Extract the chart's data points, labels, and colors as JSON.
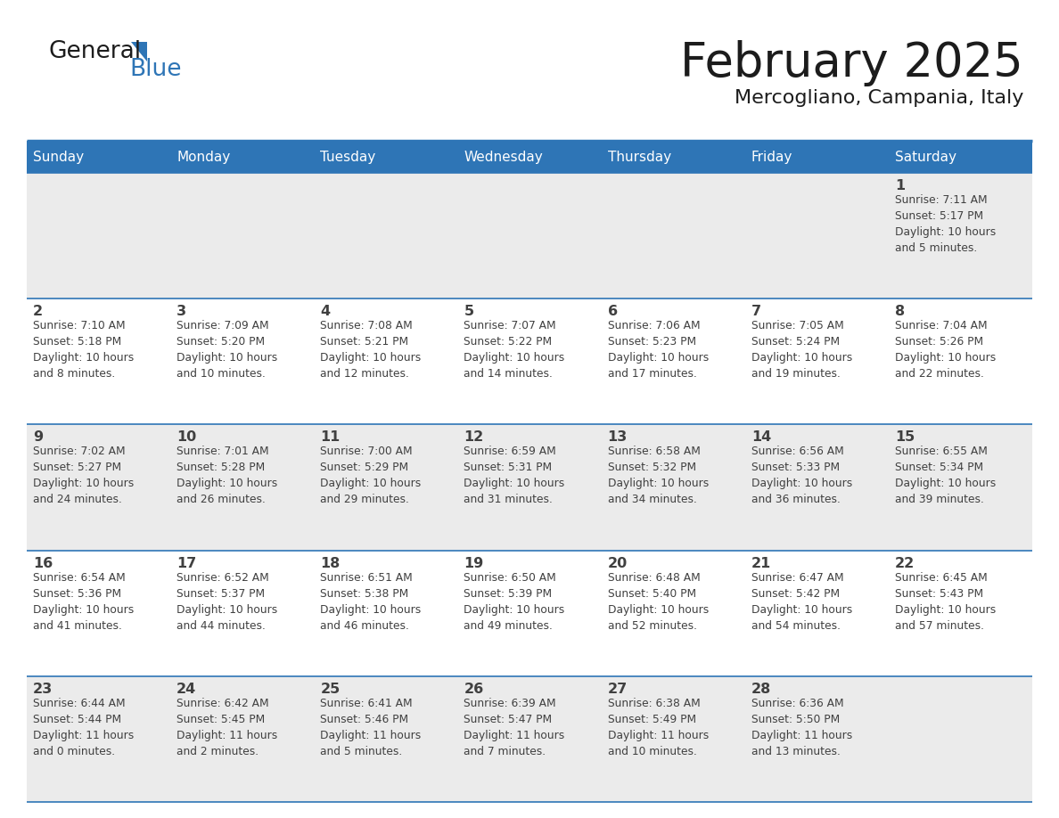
{
  "title": "February 2025",
  "subtitle": "Mercogliano, Campania, Italy",
  "header_bg_color": "#2E75B6",
  "header_text_color": "#FFFFFF",
  "row_bg_odd": "#EBEBEB",
  "row_bg_even": "#FFFFFF",
  "border_color": "#2E75B6",
  "day_number_color": "#404040",
  "text_color": "#404040",
  "weekdays": [
    "Sunday",
    "Monday",
    "Tuesday",
    "Wednesday",
    "Thursday",
    "Friday",
    "Saturday"
  ],
  "calendar": [
    [
      {
        "day": null,
        "info": ""
      },
      {
        "day": null,
        "info": ""
      },
      {
        "day": null,
        "info": ""
      },
      {
        "day": null,
        "info": ""
      },
      {
        "day": null,
        "info": ""
      },
      {
        "day": null,
        "info": ""
      },
      {
        "day": 1,
        "info": "Sunrise: 7:11 AM\nSunset: 5:17 PM\nDaylight: 10 hours\nand 5 minutes."
      }
    ],
    [
      {
        "day": 2,
        "info": "Sunrise: 7:10 AM\nSunset: 5:18 PM\nDaylight: 10 hours\nand 8 minutes."
      },
      {
        "day": 3,
        "info": "Sunrise: 7:09 AM\nSunset: 5:20 PM\nDaylight: 10 hours\nand 10 minutes."
      },
      {
        "day": 4,
        "info": "Sunrise: 7:08 AM\nSunset: 5:21 PM\nDaylight: 10 hours\nand 12 minutes."
      },
      {
        "day": 5,
        "info": "Sunrise: 7:07 AM\nSunset: 5:22 PM\nDaylight: 10 hours\nand 14 minutes."
      },
      {
        "day": 6,
        "info": "Sunrise: 7:06 AM\nSunset: 5:23 PM\nDaylight: 10 hours\nand 17 minutes."
      },
      {
        "day": 7,
        "info": "Sunrise: 7:05 AM\nSunset: 5:24 PM\nDaylight: 10 hours\nand 19 minutes."
      },
      {
        "day": 8,
        "info": "Sunrise: 7:04 AM\nSunset: 5:26 PM\nDaylight: 10 hours\nand 22 minutes."
      }
    ],
    [
      {
        "day": 9,
        "info": "Sunrise: 7:02 AM\nSunset: 5:27 PM\nDaylight: 10 hours\nand 24 minutes."
      },
      {
        "day": 10,
        "info": "Sunrise: 7:01 AM\nSunset: 5:28 PM\nDaylight: 10 hours\nand 26 minutes."
      },
      {
        "day": 11,
        "info": "Sunrise: 7:00 AM\nSunset: 5:29 PM\nDaylight: 10 hours\nand 29 minutes."
      },
      {
        "day": 12,
        "info": "Sunrise: 6:59 AM\nSunset: 5:31 PM\nDaylight: 10 hours\nand 31 minutes."
      },
      {
        "day": 13,
        "info": "Sunrise: 6:58 AM\nSunset: 5:32 PM\nDaylight: 10 hours\nand 34 minutes."
      },
      {
        "day": 14,
        "info": "Sunrise: 6:56 AM\nSunset: 5:33 PM\nDaylight: 10 hours\nand 36 minutes."
      },
      {
        "day": 15,
        "info": "Sunrise: 6:55 AM\nSunset: 5:34 PM\nDaylight: 10 hours\nand 39 minutes."
      }
    ],
    [
      {
        "day": 16,
        "info": "Sunrise: 6:54 AM\nSunset: 5:36 PM\nDaylight: 10 hours\nand 41 minutes."
      },
      {
        "day": 17,
        "info": "Sunrise: 6:52 AM\nSunset: 5:37 PM\nDaylight: 10 hours\nand 44 minutes."
      },
      {
        "day": 18,
        "info": "Sunrise: 6:51 AM\nSunset: 5:38 PM\nDaylight: 10 hours\nand 46 minutes."
      },
      {
        "day": 19,
        "info": "Sunrise: 6:50 AM\nSunset: 5:39 PM\nDaylight: 10 hours\nand 49 minutes."
      },
      {
        "day": 20,
        "info": "Sunrise: 6:48 AM\nSunset: 5:40 PM\nDaylight: 10 hours\nand 52 minutes."
      },
      {
        "day": 21,
        "info": "Sunrise: 6:47 AM\nSunset: 5:42 PM\nDaylight: 10 hours\nand 54 minutes."
      },
      {
        "day": 22,
        "info": "Sunrise: 6:45 AM\nSunset: 5:43 PM\nDaylight: 10 hours\nand 57 minutes."
      }
    ],
    [
      {
        "day": 23,
        "info": "Sunrise: 6:44 AM\nSunset: 5:44 PM\nDaylight: 11 hours\nand 0 minutes."
      },
      {
        "day": 24,
        "info": "Sunrise: 6:42 AM\nSunset: 5:45 PM\nDaylight: 11 hours\nand 2 minutes."
      },
      {
        "day": 25,
        "info": "Sunrise: 6:41 AM\nSunset: 5:46 PM\nDaylight: 11 hours\nand 5 minutes."
      },
      {
        "day": 26,
        "info": "Sunrise: 6:39 AM\nSunset: 5:47 PM\nDaylight: 11 hours\nand 7 minutes."
      },
      {
        "day": 27,
        "info": "Sunrise: 6:38 AM\nSunset: 5:49 PM\nDaylight: 11 hours\nand 10 minutes."
      },
      {
        "day": 28,
        "info": "Sunrise: 6:36 AM\nSunset: 5:50 PM\nDaylight: 11 hours\nand 13 minutes."
      },
      {
        "day": null,
        "info": ""
      }
    ]
  ],
  "fig_width": 11.88,
  "fig_height": 9.18,
  "dpi": 100
}
